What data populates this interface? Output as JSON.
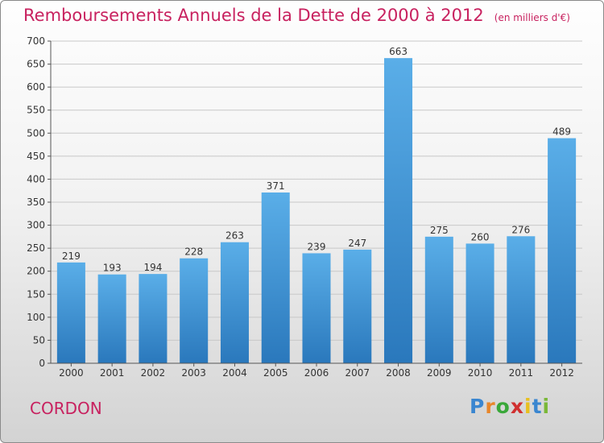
{
  "title": "Remboursements Annuels de la Dette de 2000 à 2012",
  "unit": "(en milliers d'€)",
  "city": "CORDON",
  "brand": {
    "letters": [
      "P",
      "r",
      "o",
      "x",
      "i",
      "t",
      "i"
    ],
    "colors": [
      "#3a86d0",
      "#e8862a",
      "#3aa83a",
      "#d03030",
      "#e8c020",
      "#3a86d0",
      "#7ab838"
    ]
  },
  "colors": {
    "bar_top": "#5aaee8",
    "bar_bottom": "#2a78bc",
    "title": "#c8215f"
  },
  "chart_data": {
    "type": "bar",
    "title": "Remboursements Annuels de la Dette de 2000 à 2012",
    "xlabel": "",
    "ylabel": "",
    "ylim": [
      0,
      700
    ],
    "yticks": [
      0,
      50,
      100,
      150,
      200,
      250,
      300,
      350,
      400,
      450,
      500,
      550,
      600,
      650,
      700
    ],
    "grid": true,
    "categories": [
      "2000",
      "2001",
      "2002",
      "2003",
      "2004",
      "2005",
      "2006",
      "2007",
      "2008",
      "2009",
      "2010",
      "2011",
      "2012"
    ],
    "values": [
      219,
      193,
      194,
      228,
      263,
      371,
      239,
      247,
      663,
      275,
      260,
      276,
      489
    ]
  }
}
